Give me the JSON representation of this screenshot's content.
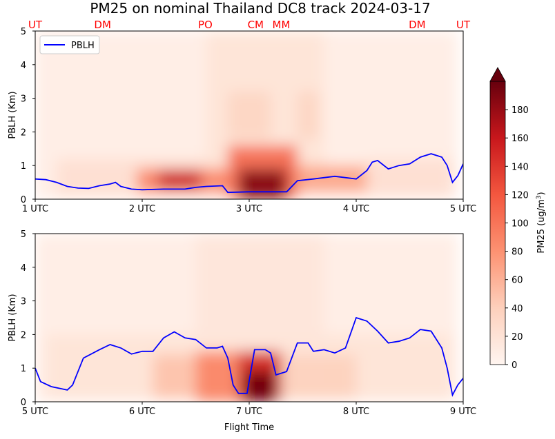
{
  "chart_data": {
    "type": "heatmap",
    "title": "PM25 on nominal Thailand DC8 track 2024-03-17",
    "site_labels": [
      {
        "label": "UT",
        "time": 1.0
      },
      {
        "label": "DM",
        "time": 1.63
      },
      {
        "label": "PO",
        "time": 2.59
      },
      {
        "label": "CM",
        "time": 3.06
      },
      {
        "label": "MM",
        "time": 3.3
      },
      {
        "label": "DM",
        "time": 4.57
      },
      {
        "label": "UT",
        "time": 5.0
      }
    ],
    "colorbar": {
      "label": "PM25 (ug/m3)",
      "label_main": "PM25 (ug/m",
      "label_sup": "3",
      "label_close": ")",
      "ticks": [
        "0",
        "20",
        "40",
        "60",
        "80",
        "100",
        "120",
        "140",
        "160",
        "180"
      ],
      "range": [
        0,
        200
      ],
      "extend": "max"
    },
    "legend": {
      "entries": [
        "PBLH"
      ],
      "placement": "upper-left",
      "color": "#0000ff"
    },
    "panels": [
      {
        "xlim": [
          1,
          5
        ],
        "ylim": [
          0,
          5
        ],
        "ylabel": "PBLH (Km)",
        "xlabel": "",
        "xticks": [
          {
            "v": 1,
            "t": "1 UTC"
          },
          {
            "v": 2,
            "t": "2 UTC"
          },
          {
            "v": 3,
            "t": "3 UTC"
          },
          {
            "v": 4,
            "t": "4 UTC"
          },
          {
            "v": 5,
            "t": "5 UTC"
          }
        ],
        "yticks": [
          "0",
          "1",
          "2",
          "3",
          "4",
          "5"
        ],
        "pblh": [
          [
            1.0,
            0.6
          ],
          [
            1.1,
            0.58
          ],
          [
            1.2,
            0.5
          ],
          [
            1.3,
            0.38
          ],
          [
            1.4,
            0.33
          ],
          [
            1.5,
            0.32
          ],
          [
            1.6,
            0.4
          ],
          [
            1.7,
            0.45
          ],
          [
            1.75,
            0.5
          ],
          [
            1.8,
            0.38
          ],
          [
            1.9,
            0.3
          ],
          [
            2.0,
            0.28
          ],
          [
            2.2,
            0.3
          ],
          [
            2.4,
            0.3
          ],
          [
            2.5,
            0.35
          ],
          [
            2.6,
            0.38
          ],
          [
            2.75,
            0.4
          ],
          [
            2.8,
            0.2
          ],
          [
            3.0,
            0.22
          ],
          [
            3.2,
            0.22
          ],
          [
            3.35,
            0.22
          ],
          [
            3.45,
            0.55
          ],
          [
            3.6,
            0.6
          ],
          [
            3.8,
            0.68
          ],
          [
            4.0,
            0.6
          ],
          [
            4.1,
            0.85
          ],
          [
            4.15,
            1.1
          ],
          [
            4.2,
            1.15
          ],
          [
            4.3,
            0.9
          ],
          [
            4.4,
            1.0
          ],
          [
            4.5,
            1.05
          ],
          [
            4.6,
            1.25
          ],
          [
            4.7,
            1.35
          ],
          [
            4.8,
            1.25
          ],
          [
            4.85,
            1.0
          ],
          [
            4.9,
            0.5
          ],
          [
            4.95,
            0.7
          ],
          [
            5.0,
            1.05
          ]
        ],
        "pm25_regions": [
          {
            "t": [
              1.0,
              4.95
            ],
            "z": [
              0,
              5
            ],
            "v": 8
          },
          {
            "t": [
              1.2,
              2.8
            ],
            "z": [
              0.1,
              1.2
            ],
            "v": 25
          },
          {
            "t": [
              2.6,
              3.7
            ],
            "z": [
              0.5,
              5
            ],
            "v": 20
          },
          {
            "t": [
              2.8,
              3.2
            ],
            "z": [
              1.8,
              3.2
            ],
            "v": 35
          },
          {
            "t": [
              3.45,
              3.65
            ],
            "z": [
              1.8,
              3.2
            ],
            "v": 35
          },
          {
            "t": [
              1.95,
              2.8
            ],
            "z": [
              0.2,
              0.9
            ],
            "v": 90
          },
          {
            "t": [
              2.15,
              2.55
            ],
            "z": [
              0.3,
              0.85
            ],
            "v": 160
          },
          {
            "t": [
              3.35,
              4.1
            ],
            "z": [
              0.2,
              1.0
            ],
            "v": 70
          },
          {
            "t": [
              2.8,
              3.45
            ],
            "z": [
              0,
              1.6
            ],
            "v": 110
          },
          {
            "t": [
              2.9,
              3.35
            ],
            "z": [
              0,
              0.9
            ],
            "v": 190
          },
          {
            "t": [
              4.1,
              4.9
            ],
            "z": [
              0.1,
              1.2
            ],
            "v": 25
          }
        ]
      },
      {
        "xlim": [
          5,
          9
        ],
        "ylim": [
          0,
          5
        ],
        "ylabel": "PBLH (Km)",
        "xlabel": "Flight Time",
        "xticks": [
          {
            "v": 5,
            "t": "5 UTC"
          },
          {
            "v": 6,
            "t": "6 UTC"
          },
          {
            "v": 7,
            "t": "7 UTC"
          },
          {
            "v": 8,
            "t": "8 UTC"
          },
          {
            "v": 9,
            "t": "9 UTC"
          }
        ],
        "yticks": [
          "0",
          "1",
          "2",
          "3",
          "4",
          "5"
        ],
        "pblh": [
          [
            5.0,
            1.0
          ],
          [
            5.05,
            0.6
          ],
          [
            5.15,
            0.45
          ],
          [
            5.3,
            0.35
          ],
          [
            5.35,
            0.5
          ],
          [
            5.45,
            1.3
          ],
          [
            5.6,
            1.55
          ],
          [
            5.7,
            1.7
          ],
          [
            5.8,
            1.6
          ],
          [
            5.9,
            1.42
          ],
          [
            6.0,
            1.5
          ],
          [
            6.1,
            1.5
          ],
          [
            6.2,
            1.9
          ],
          [
            6.3,
            2.08
          ],
          [
            6.4,
            1.9
          ],
          [
            6.5,
            1.85
          ],
          [
            6.6,
            1.6
          ],
          [
            6.7,
            1.6
          ],
          [
            6.75,
            1.65
          ],
          [
            6.8,
            1.3
          ],
          [
            6.85,
            0.5
          ],
          [
            6.9,
            0.25
          ],
          [
            6.98,
            0.25
          ],
          [
            7.05,
            1.55
          ],
          [
            7.15,
            1.55
          ],
          [
            7.2,
            1.45
          ],
          [
            7.25,
            0.8
          ],
          [
            7.35,
            0.9
          ],
          [
            7.45,
            1.75
          ],
          [
            7.55,
            1.75
          ],
          [
            7.6,
            1.5
          ],
          [
            7.7,
            1.55
          ],
          [
            7.8,
            1.45
          ],
          [
            7.9,
            1.6
          ],
          [
            8.0,
            2.5
          ],
          [
            8.1,
            2.4
          ],
          [
            8.2,
            2.1
          ],
          [
            8.3,
            1.75
          ],
          [
            8.4,
            1.8
          ],
          [
            8.5,
            1.9
          ],
          [
            8.6,
            2.15
          ],
          [
            8.7,
            2.1
          ],
          [
            8.8,
            1.6
          ],
          [
            8.85,
            1.0
          ],
          [
            8.9,
            0.2
          ],
          [
            8.95,
            0.5
          ],
          [
            9.0,
            0.7
          ]
        ],
        "pm25_regions": [
          {
            "t": [
              5.0,
              8.95
            ],
            "z": [
              0,
              5
            ],
            "v": 8
          },
          {
            "t": [
              5.1,
              8.9
            ],
            "z": [
              0.1,
              2.0
            ],
            "v": 20
          },
          {
            "t": [
              6.5,
              7.7
            ],
            "z": [
              0.5,
              5
            ],
            "v": 18
          },
          {
            "t": [
              6.1,
              6.9
            ],
            "z": [
              0.1,
              1.4
            ],
            "v": 50
          },
          {
            "t": [
              6.5,
              7.3
            ],
            "z": [
              0,
              1.5
            ],
            "v": 90
          },
          {
            "t": [
              6.9,
              7.3
            ],
            "z": [
              0,
              1.5
            ],
            "v": 150
          },
          {
            "t": [
              6.95,
              7.25
            ],
            "z": [
              0,
              0.9
            ],
            "v": 200
          },
          {
            "t": [
              7.3,
              8.0
            ],
            "z": [
              0.1,
              1.4
            ],
            "v": 40
          }
        ]
      }
    ]
  }
}
